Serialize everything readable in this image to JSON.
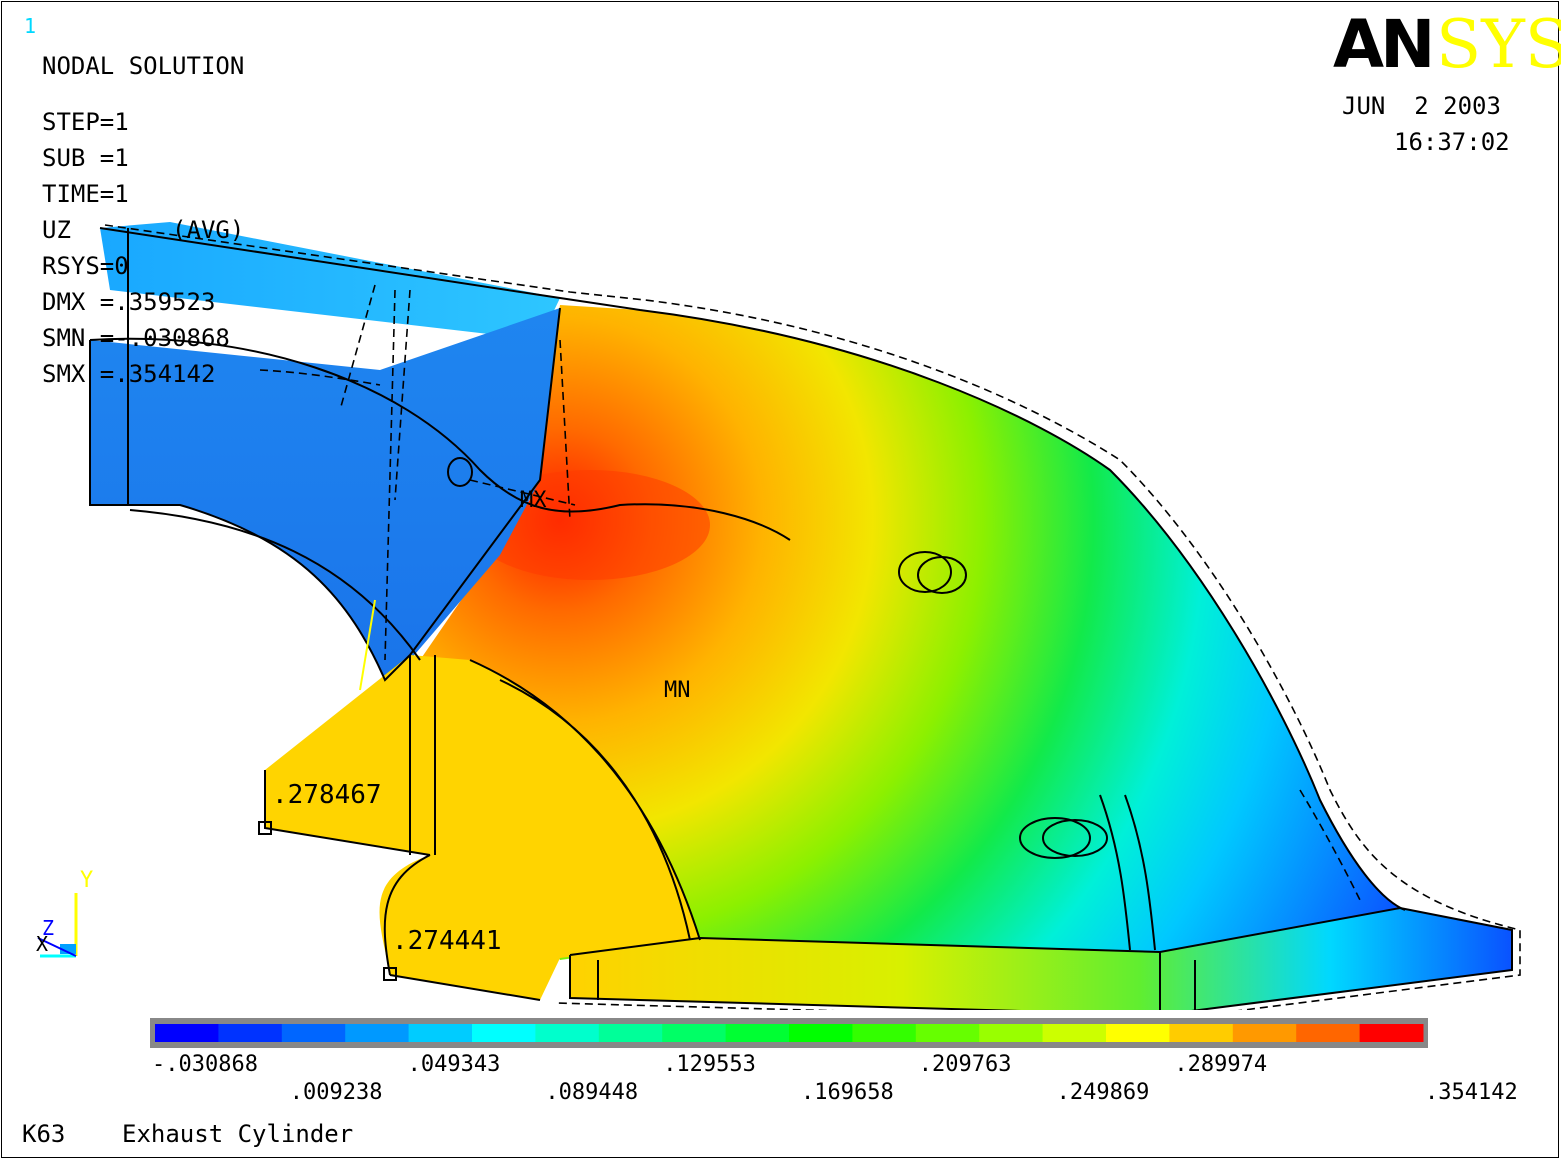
{
  "window_number": "1",
  "plot": {
    "title": "NODAL SOLUTION",
    "step": "STEP=1",
    "sub": "SUB =1",
    "time": "TIME=1",
    "result": "UZ       (AVG)",
    "rsys": "RSYS=0",
    "dmx": "DMX =.359523",
    "smn": "SMN =-.030868",
    "smx": "SMX =.354142"
  },
  "logo": {
    "bold_part": "AN",
    "light_part": "SYS"
  },
  "date": "JUN  2 2003",
  "clock": "16:37:02",
  "annotations": {
    "mx": "MX",
    "mn": "MN",
    "value_a": ".278467",
    "value_b": ".274441"
  },
  "triad": {
    "y": "Y",
    "z": "Z",
    "x": "X"
  },
  "legend": {
    "upper_labels": [
      "-.030868",
      ".049343",
      ".129553",
      ".209763",
      ".289974"
    ],
    "lower_labels": [
      ".009238",
      ".089448",
      ".169658",
      ".249869",
      ".354142"
    ],
    "colors": [
      "#0000ff",
      "#0033ff",
      "#0066ff",
      "#0099ff",
      "#00ccff",
      "#00ffff",
      "#00ffcc",
      "#00ff99",
      "#00ff66",
      "#00ff33",
      "#00ff00",
      "#33ff00",
      "#66ff00",
      "#99ff00",
      "#ccff00",
      "#ffff00",
      "#ffcc00",
      "#ff9900",
      "#ff6600",
      "#ff0000"
    ]
  },
  "footer": {
    "model_id": "K63",
    "model_title": "Exhaust Cylinder"
  }
}
